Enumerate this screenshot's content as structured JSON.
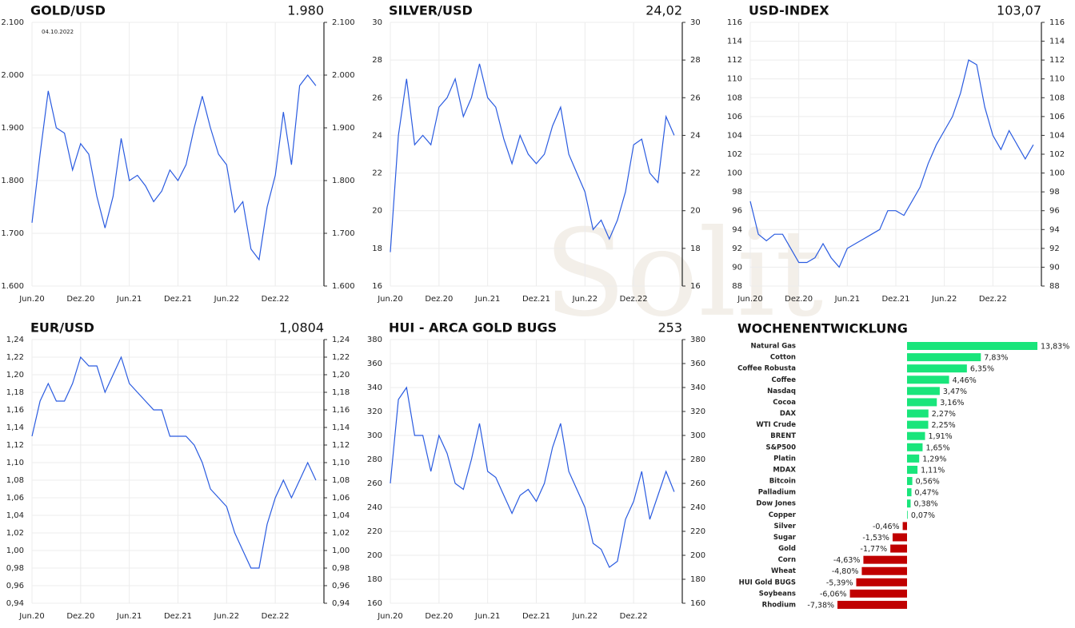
{
  "watermark": "Solit",
  "chart_data": [
    {
      "type": "line",
      "title": "GOLD/USD",
      "subtitle": "1.980",
      "annotation": "04.10.2022",
      "color": "#2a5be0",
      "grid": true,
      "x": [
        0,
        1,
        2,
        3,
        4,
        5,
        6,
        7,
        8,
        9,
        10,
        11,
        12,
        13,
        14,
        15,
        16,
        17,
        18,
        19,
        20,
        21,
        22,
        23,
        24,
        25,
        26,
        27,
        28,
        29,
        30,
        31,
        32,
        33,
        34,
        35
      ],
      "values": [
        1720,
        1850,
        1970,
        1900,
        1890,
        1820,
        1870,
        1850,
        1770,
        1710,
        1770,
        1880,
        1800,
        1810,
        1790,
        1760,
        1780,
        1820,
        1800,
        1830,
        1900,
        1960,
        1900,
        1850,
        1830,
        1740,
        1760,
        1670,
        1650,
        1750,
        1810,
        1930,
        1830,
        1980,
        2000,
        1980
      ],
      "xlim": [
        0,
        36
      ],
      "xticks": [
        {
          "value": 0,
          "label": "Jun.20"
        },
        {
          "value": 6,
          "label": "Dez.20"
        },
        {
          "value": 12,
          "label": "Jun.21"
        },
        {
          "value": 18,
          "label": "Dez.21"
        },
        {
          "value": 24,
          "label": "Jun.22"
        },
        {
          "value": 30,
          "label": "Dez.22"
        }
      ],
      "ylim": [
        1600,
        2100
      ],
      "yticks": [
        {
          "value": 1600,
          "label": "1.600"
        },
        {
          "value": 1700,
          "label": "1.700"
        },
        {
          "value": 1800,
          "label": "1.800"
        },
        {
          "value": 1900,
          "label": "1.900"
        },
        {
          "value": 2000,
          "label": "2.000"
        },
        {
          "value": 2100,
          "label": "2.100"
        }
      ]
    },
    {
      "type": "line",
      "title": "SILVER/USD",
      "subtitle": "24,02",
      "color": "#2a5be0",
      "grid": true,
      "x": [
        0,
        1,
        2,
        3,
        4,
        5,
        6,
        7,
        8,
        9,
        10,
        11,
        12,
        13,
        14,
        15,
        16,
        17,
        18,
        19,
        20,
        21,
        22,
        23,
        24,
        25,
        26,
        27,
        28,
        29,
        30,
        31,
        32,
        33,
        34,
        35
      ],
      "values": [
        17.8,
        24,
        27,
        23.5,
        24,
        23.5,
        25.5,
        26,
        27,
        25,
        26,
        27.8,
        26,
        25.5,
        23.8,
        22.5,
        24,
        23,
        22.5,
        23,
        24.5,
        25.5,
        23,
        22,
        21,
        19,
        19.5,
        18.5,
        19.5,
        21,
        23.5,
        23.8,
        22,
        21.5,
        25,
        24
      ],
      "xlim": [
        0,
        36
      ],
      "xticks": [
        {
          "value": 0,
          "label": "Jun.20"
        },
        {
          "value": 6,
          "label": "Dez.20"
        },
        {
          "value": 12,
          "label": "Jun.21"
        },
        {
          "value": 18,
          "label": "Dez.21"
        },
        {
          "value": 24,
          "label": "Jun.22"
        },
        {
          "value": 30,
          "label": "Dez.22"
        }
      ],
      "ylim": [
        16,
        30
      ],
      "yticks": [
        16,
        18,
        20,
        22,
        24,
        26,
        28,
        30
      ]
    },
    {
      "type": "line",
      "title": "USD-INDEX",
      "subtitle": "103,07",
      "color": "#2a5be0",
      "grid": true,
      "x": [
        0,
        1,
        2,
        3,
        4,
        5,
        6,
        7,
        8,
        9,
        10,
        11,
        12,
        13,
        14,
        15,
        16,
        17,
        18,
        19,
        20,
        21,
        22,
        23,
        24,
        25,
        26,
        27,
        28,
        29,
        30,
        31,
        32,
        33,
        34,
        35
      ],
      "values": [
        97,
        93.5,
        92.8,
        93.5,
        93.5,
        92,
        90.5,
        90.5,
        91,
        92.5,
        91,
        90,
        92,
        92.5,
        93,
        93.5,
        94,
        96,
        96,
        95.5,
        97,
        98.5,
        101,
        103,
        104.5,
        106,
        108.5,
        112,
        111.5,
        107,
        104,
        102.5,
        104.5,
        103,
        101.5,
        103
      ],
      "xlim": [
        0,
        36
      ],
      "xticks": [
        {
          "value": 0,
          "label": "Jun.20"
        },
        {
          "value": 6,
          "label": "Dez.20"
        },
        {
          "value": 12,
          "label": "Jun.21"
        },
        {
          "value": 18,
          "label": "Dez.21"
        },
        {
          "value": 24,
          "label": "Jun.22"
        },
        {
          "value": 30,
          "label": "Dez.22"
        }
      ],
      "ylim": [
        88,
        116
      ],
      "yticks": [
        88,
        90,
        92,
        94,
        96,
        98,
        100,
        102,
        104,
        106,
        108,
        110,
        112,
        114,
        116
      ]
    },
    {
      "type": "line",
      "title": "EUR/USD",
      "subtitle": "1,0804",
      "color": "#2a5be0",
      "grid": true,
      "x": [
        0,
        1,
        2,
        3,
        4,
        5,
        6,
        7,
        8,
        9,
        10,
        11,
        12,
        13,
        14,
        15,
        16,
        17,
        18,
        19,
        20,
        21,
        22,
        23,
        24,
        25,
        26,
        27,
        28,
        29,
        30,
        31,
        32,
        33,
        34,
        35
      ],
      "values": [
        1.13,
        1.17,
        1.19,
        1.17,
        1.17,
        1.19,
        1.22,
        1.21,
        1.21,
        1.18,
        1.2,
        1.22,
        1.19,
        1.18,
        1.17,
        1.16,
        1.16,
        1.13,
        1.13,
        1.13,
        1.12,
        1.1,
        1.07,
        1.06,
        1.05,
        1.02,
        1.0,
        0.98,
        0.98,
        1.03,
        1.06,
        1.08,
        1.06,
        1.08,
        1.1,
        1.08
      ],
      "xlim": [
        0,
        36
      ],
      "xticks": [
        {
          "value": 0,
          "label": "Jun.20"
        },
        {
          "value": 6,
          "label": "Dez.20"
        },
        {
          "value": 12,
          "label": "Jun.21"
        },
        {
          "value": 18,
          "label": "Dez.21"
        },
        {
          "value": 24,
          "label": "Jun.22"
        },
        {
          "value": 30,
          "label": "Dez.22"
        }
      ],
      "ylim": [
        0.94,
        1.24
      ],
      "yticks": [
        {
          "value": 0.94,
          "label": "0,94"
        },
        {
          "value": 0.96,
          "label": "0,96"
        },
        {
          "value": 0.98,
          "label": "0,98"
        },
        {
          "value": 1.0,
          "label": "1,00"
        },
        {
          "value": 1.02,
          "label": "1,02"
        },
        {
          "value": 1.04,
          "label": "1,04"
        },
        {
          "value": 1.06,
          "label": "1,06"
        },
        {
          "value": 1.08,
          "label": "1,08"
        },
        {
          "value": 1.1,
          "label": "1,10"
        },
        {
          "value": 1.12,
          "label": "1,12"
        },
        {
          "value": 1.14,
          "label": "1,14"
        },
        {
          "value": 1.16,
          "label": "1,16"
        },
        {
          "value": 1.18,
          "label": "1,18"
        },
        {
          "value": 1.2,
          "label": "1,20"
        },
        {
          "value": 1.22,
          "label": "1,22"
        },
        {
          "value": 1.24,
          "label": "1,24"
        }
      ]
    },
    {
      "type": "line",
      "title": "HUI - ARCA GOLD BUGS",
      "subtitle": "253",
      "color": "#2a5be0",
      "grid": true,
      "x": [
        0,
        1,
        2,
        3,
        4,
        5,
        6,
        7,
        8,
        9,
        10,
        11,
        12,
        13,
        14,
        15,
        16,
        17,
        18,
        19,
        20,
        21,
        22,
        23,
        24,
        25,
        26,
        27,
        28,
        29,
        30,
        31,
        32,
        33,
        34,
        35
      ],
      "values": [
        260,
        330,
        340,
        300,
        300,
        270,
        300,
        285,
        260,
        255,
        280,
        310,
        270,
        265,
        250,
        235,
        250,
        255,
        245,
        260,
        290,
        310,
        270,
        255,
        240,
        210,
        205,
        190,
        195,
        230,
        245,
        270,
        230,
        250,
        270,
        253
      ],
      "xlim": [
        0,
        36
      ],
      "xticks": [
        {
          "value": 0,
          "label": "Jun.20"
        },
        {
          "value": 6,
          "label": "Dez.20"
        },
        {
          "value": 12,
          "label": "Jun.21"
        },
        {
          "value": 18,
          "label": "Dez.21"
        },
        {
          "value": 24,
          "label": "Jun.22"
        },
        {
          "value": 30,
          "label": "Dez.22"
        }
      ],
      "ylim": [
        160,
        380
      ],
      "yticks": [
        160,
        180,
        200,
        220,
        240,
        260,
        280,
        300,
        320,
        340,
        360,
        380
      ]
    },
    {
      "type": "hbar",
      "title": "WOCHENENTWICKLUNG",
      "colors": {
        "positive": "#19e57b",
        "negative": "#c00000"
      },
      "categories": [
        "Natural Gas",
        "Cotton",
        "Coffee Robusta",
        "Coffee",
        "Nasdaq",
        "Cocoa",
        "DAX",
        "WTI Crude",
        "BRENT",
        "S&P500",
        "Platin",
        "MDAX",
        "Bitcoin",
        "Palladium",
        "Dow Jones",
        "Copper",
        "Silver",
        "Sugar",
        "Gold",
        "Corn",
        "Wheat",
        "HUI Gold BUGS",
        "Soybeans",
        "Rhodium"
      ],
      "values": [
        13.83,
        7.83,
        6.35,
        4.46,
        3.47,
        3.16,
        2.27,
        2.25,
        1.91,
        1.65,
        1.29,
        1.11,
        0.56,
        0.47,
        0.38,
        0.07,
        -0.46,
        -1.53,
        -1.77,
        -4.63,
        -4.8,
        -5.39,
        -6.06,
        -7.38
      ],
      "value_labels": [
        "13,83%",
        "7,83%",
        "6,35%",
        "4,46%",
        "3,47%",
        "3,16%",
        "2,27%",
        "2,25%",
        "1,91%",
        "1,65%",
        "1,29%",
        "1,11%",
        "0,56%",
        "0,47%",
        "0,38%",
        "0,07%",
        "-0,46%",
        "-1,53%",
        "-1,77%",
        "-4,63%",
        "-4,80%",
        "-5,39%",
        "-6,06%",
        "-7,38%"
      ]
    }
  ]
}
